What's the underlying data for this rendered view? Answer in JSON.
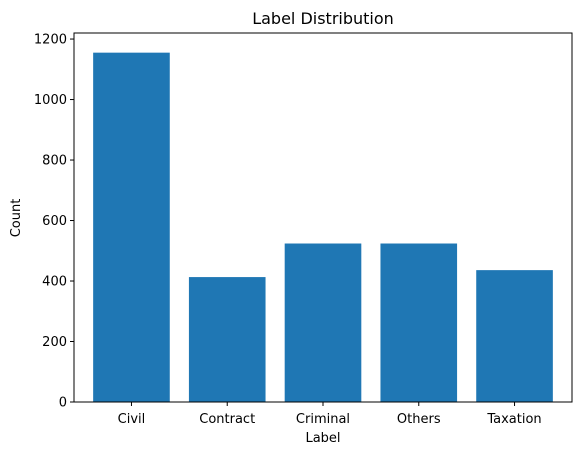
{
  "chart_data": {
    "type": "bar",
    "title": "Label Distribution",
    "xlabel": "Label",
    "ylabel": "Count",
    "categories": [
      "Civil",
      "Contract",
      "Criminal",
      "Others",
      "Taxation"
    ],
    "values": [
      1155,
      413,
      524,
      524,
      436
    ],
    "ylim": [
      0,
      1220
    ],
    "yticks": [
      0,
      200,
      400,
      600,
      800,
      1000,
      1200
    ],
    "grid": false,
    "bar_color": "#1f77b4"
  }
}
